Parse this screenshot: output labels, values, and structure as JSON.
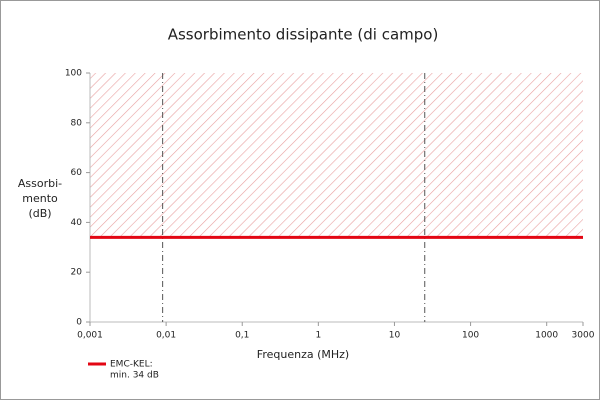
{
  "chart_data": {
    "type": "line",
    "title": "Assorbimento dissipante (di campo)",
    "x_label": "Frequenza (MHz)",
    "y_label_lines": [
      "Assorbi-",
      "mento",
      "(dB)"
    ],
    "xscale": "log",
    "xlim": [
      0.001,
      3000
    ],
    "ylim": [
      0,
      100
    ],
    "xticks": [
      {
        "value": 0.001,
        "label": "0,001"
      },
      {
        "value": 0.01,
        "label": "0,01"
      },
      {
        "value": 0.1,
        "label": "0,1"
      },
      1,
      10,
      100,
      1000,
      3000
    ],
    "yticks": [
      0,
      20,
      40,
      60,
      80,
      100
    ],
    "x": [
      0.001,
      3000
    ],
    "series": [
      {
        "name": "EMC-KEL:",
        "color": "#e30613",
        "values": [
          34,
          34
        ]
      }
    ],
    "legend_note": "min. 34 dB",
    "hatch_above_series": true,
    "hatch_color": "#e8a0a0",
    "vlines": [
      0.009,
      25
    ],
    "vline_color": "#555555"
  }
}
